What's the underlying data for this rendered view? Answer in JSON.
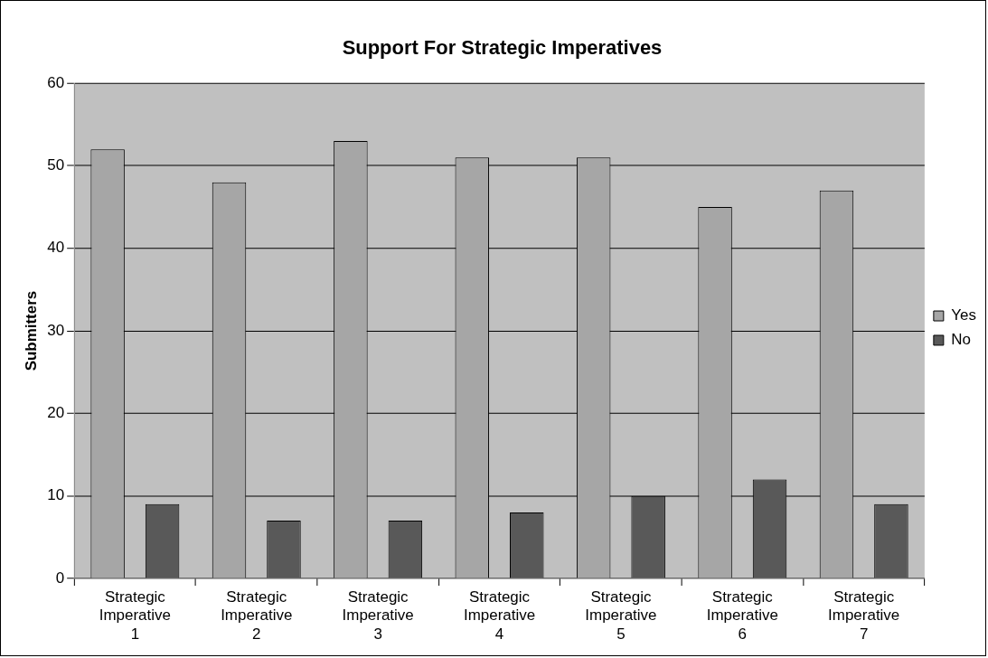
{
  "chart_data": {
    "type": "bar",
    "title": "Support For Strategic Imperatives",
    "ylabel": "Submitters",
    "categories": [
      "Strategic Imperative 1",
      "Strategic Imperative 2",
      "Strategic Imperative 3",
      "Strategic Imperative 4",
      "Strategic Imperative 5",
      "Strategic Imperative 6",
      "Strategic Imperative 7"
    ],
    "series": [
      {
        "name": "Yes",
        "color": "#a6a6a6",
        "values": [
          52,
          48,
          53,
          51,
          51,
          45,
          47
        ]
      },
      {
        "name": "No",
        "color": "#595959",
        "values": [
          9,
          7,
          7,
          8,
          10,
          12,
          9
        ]
      }
    ],
    "ylim": [
      0,
      60
    ],
    "yticks": [
      0,
      10,
      20,
      30,
      40,
      50,
      60
    ],
    "grid": "y",
    "legend": "right"
  }
}
